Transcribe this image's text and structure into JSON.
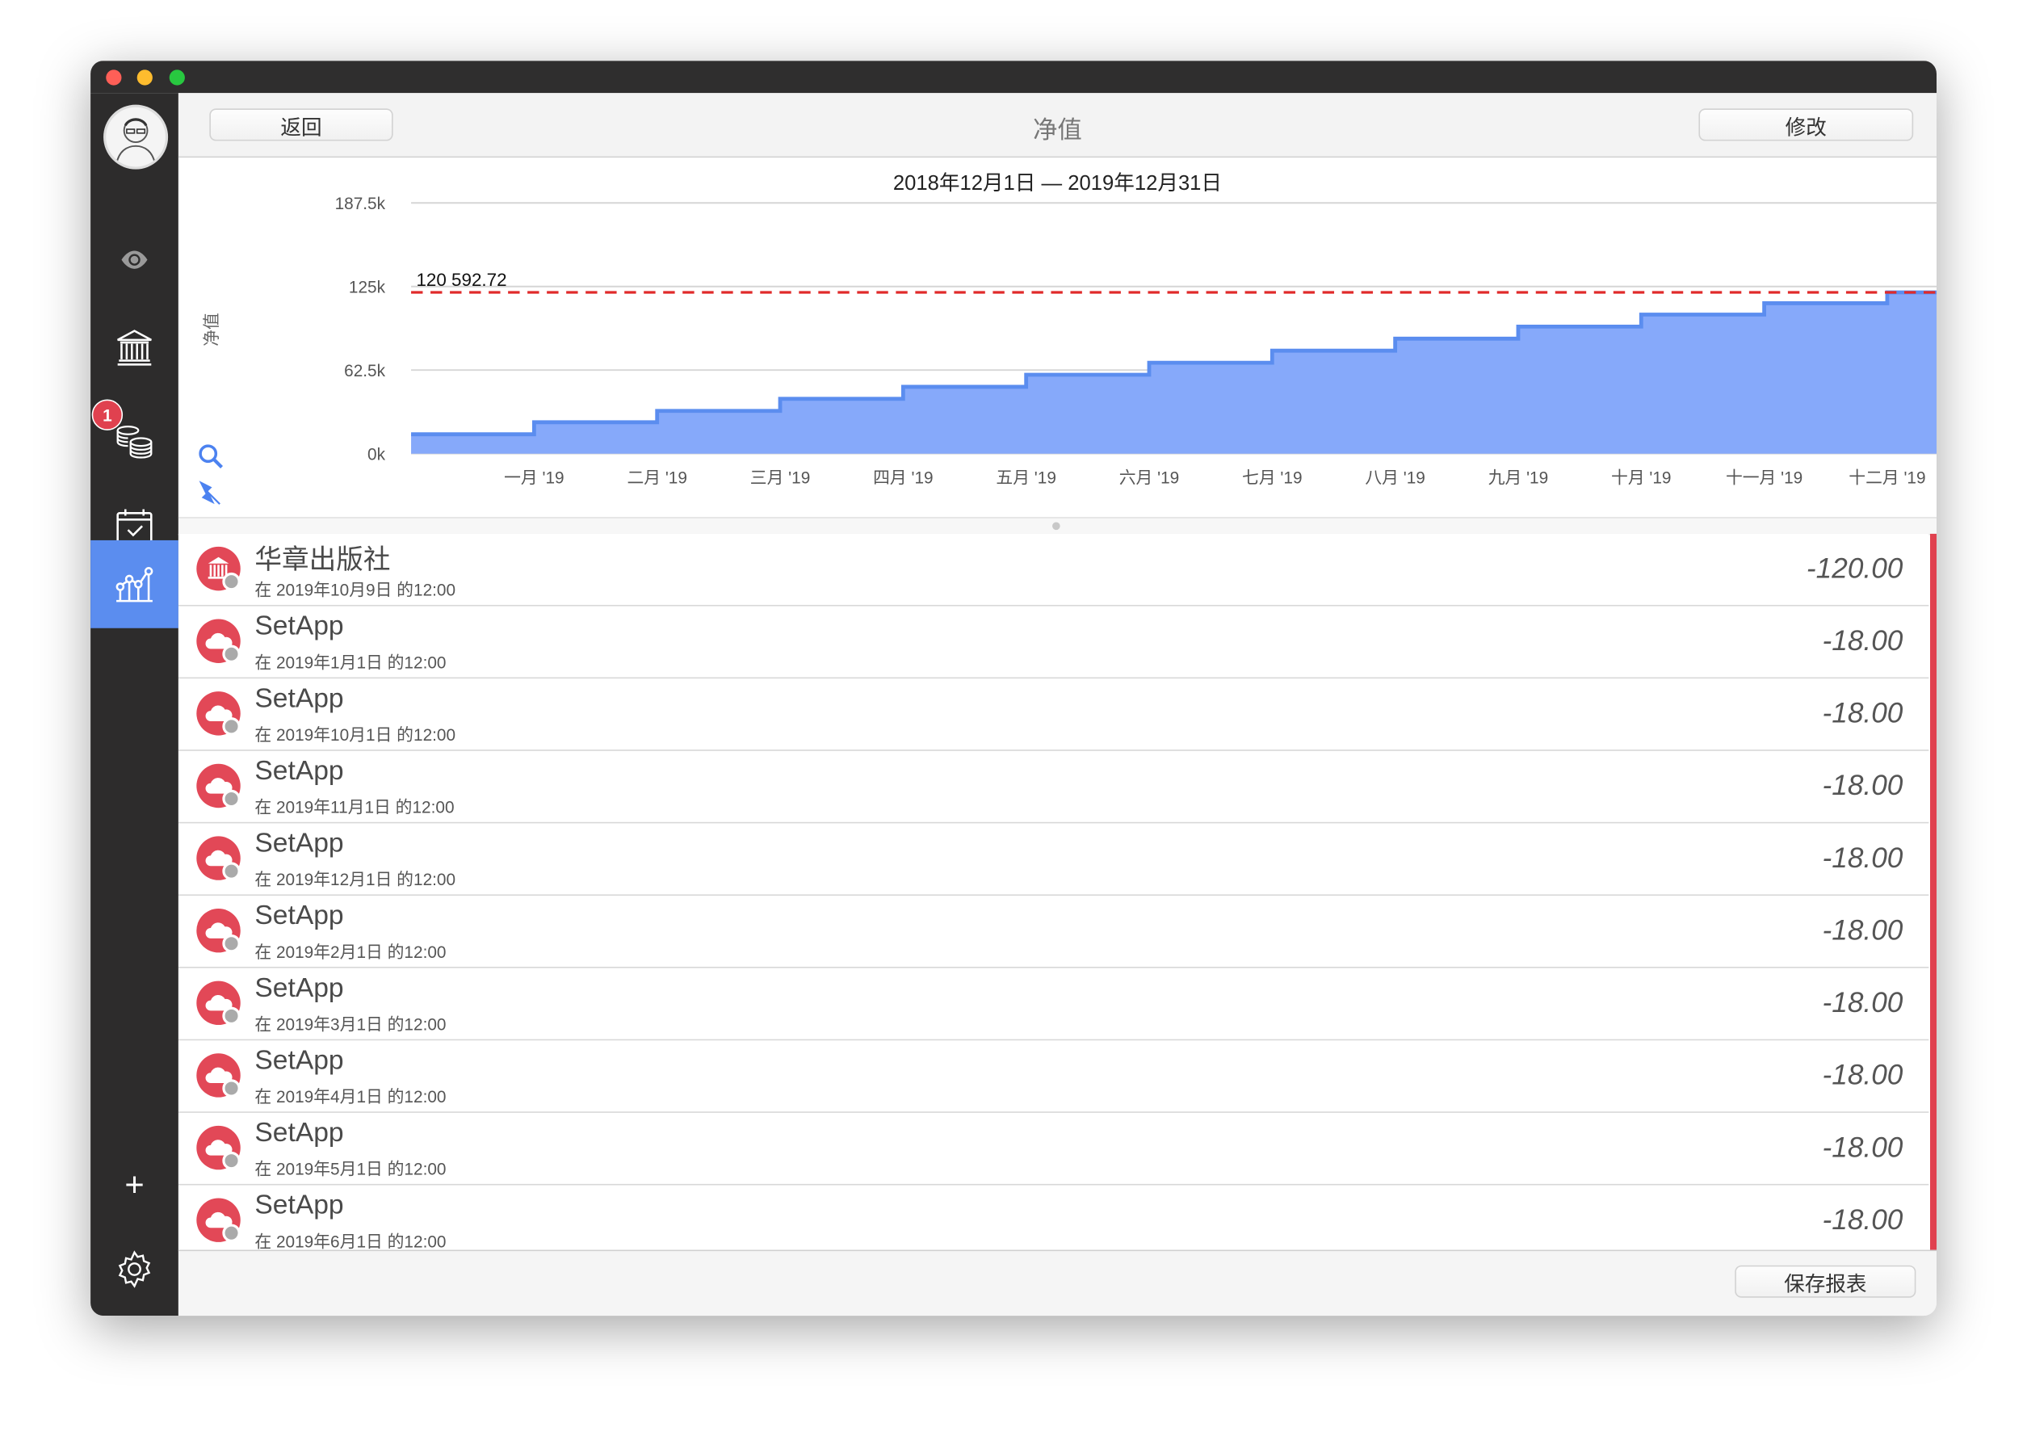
{
  "window": {
    "title": "净值"
  },
  "colors": {
    "accent": "#5b8def",
    "area_fill": "#86a9fa",
    "area_line": "#5b8def",
    "reference_line": "#e02a2a",
    "expense_red": "#e24857",
    "sidebar_bg": "#2d2c2c"
  },
  "sidebar": {
    "items": [
      {
        "name": "avatar",
        "icon": "user-avatar"
      },
      {
        "name": "overview",
        "icon": "eye-icon"
      },
      {
        "name": "accounts",
        "icon": "bank-icon"
      },
      {
        "name": "transactions",
        "icon": "coins-icon",
        "badge": "1"
      },
      {
        "name": "schedule",
        "icon": "calendar-check-icon"
      },
      {
        "name": "reports",
        "icon": "chart-icon",
        "active": true
      }
    ],
    "add_label": "+",
    "settings_icon": "gear-icon"
  },
  "header": {
    "back_label": "返回",
    "title": "净值",
    "edit_label": "修改"
  },
  "chart_data": {
    "type": "area",
    "step": true,
    "title": "2018年12月1日 — 2019年12月31日",
    "ylabel": "净值",
    "xlabel": "",
    "ylim": [
      0,
      187500
    ],
    "yticks": [
      "0k",
      "62.5k",
      "125k",
      "187.5k"
    ],
    "ytick_values": [
      0,
      62500,
      125000,
      187500
    ],
    "grid": true,
    "x": [
      "2018-12",
      "2019-01",
      "2019-02",
      "2019-03",
      "2019-04",
      "2019-05",
      "2019-06",
      "2019-07",
      "2019-08",
      "2019-09",
      "2019-10",
      "2019-11",
      "2019-12"
    ],
    "xtick_labels": [
      "一月 '19",
      "二月 '19",
      "三月 '19",
      "四月 '19",
      "五月 '19",
      "六月 '19",
      "七月 '19",
      "八月 '19",
      "九月 '19",
      "十月 '19",
      "十一月 '19",
      "十二月 '19"
    ],
    "values": [
      14500,
      23500,
      32000,
      41000,
      50000,
      59000,
      68000,
      77000,
      86000,
      95000,
      104000,
      112500,
      120592.72
    ],
    "reference_line": {
      "value": 120592.72,
      "label": "120 592.72"
    }
  },
  "chart_tools": {
    "zoom_icon": "magnifier-icon",
    "pin_icon": "pin-icon"
  },
  "transactions": [
    {
      "name": "华章出版社",
      "date": "在 2019年10月9日 的12:00",
      "amount": "-120.00",
      "icon": "bank-icon"
    },
    {
      "name": "SetApp",
      "date": "在 2019年1月1日 的12:00",
      "amount": "-18.00",
      "icon": "cloud-icon"
    },
    {
      "name": "SetApp",
      "date": "在 2019年10月1日 的12:00",
      "amount": "-18.00",
      "icon": "cloud-icon"
    },
    {
      "name": "SetApp",
      "date": "在 2019年11月1日 的12:00",
      "amount": "-18.00",
      "icon": "cloud-icon"
    },
    {
      "name": "SetApp",
      "date": "在 2019年12月1日 的12:00",
      "amount": "-18.00",
      "icon": "cloud-icon"
    },
    {
      "name": "SetApp",
      "date": "在 2019年2月1日 的12:00",
      "amount": "-18.00",
      "icon": "cloud-icon"
    },
    {
      "name": "SetApp",
      "date": "在 2019年3月1日 的12:00",
      "amount": "-18.00",
      "icon": "cloud-icon"
    },
    {
      "name": "SetApp",
      "date": "在 2019年4月1日 的12:00",
      "amount": "-18.00",
      "icon": "cloud-icon"
    },
    {
      "name": "SetApp",
      "date": "在 2019年5月1日 的12:00",
      "amount": "-18.00",
      "icon": "cloud-icon"
    },
    {
      "name": "SetApp",
      "date": "在 2019年6月1日 的12:00",
      "amount": "-18.00",
      "icon": "cloud-icon"
    }
  ],
  "footer": {
    "save_report_label": "保存报表"
  }
}
